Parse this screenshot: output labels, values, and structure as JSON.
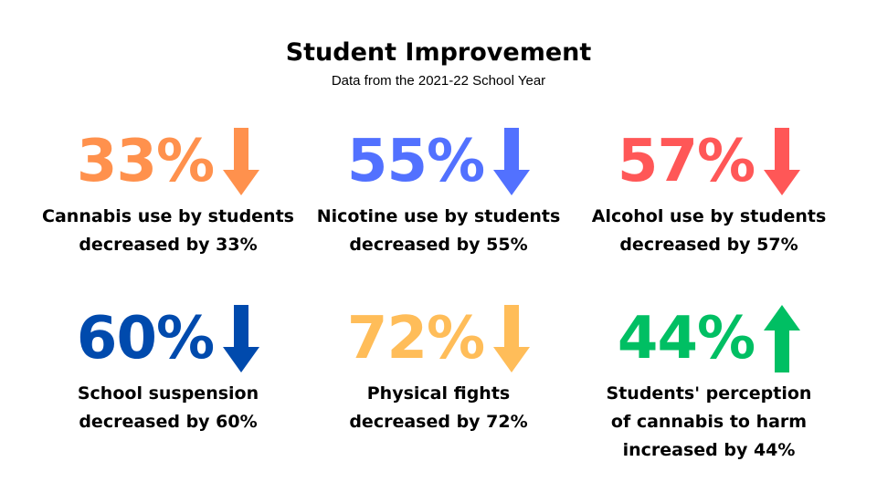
{
  "header": {
    "title": "Student Improvement",
    "subtitle": "Data from the 2021-22 School Year"
  },
  "stats": [
    {
      "percent": "33%",
      "caption": "Cannabis use by students decreased by 33%",
      "direction": "down",
      "icon": "arrow-down-icon",
      "color": "#FF914D"
    },
    {
      "percent": "55%",
      "caption": "Nicotine use by students decreased by 55%",
      "direction": "down",
      "icon": "arrow-down-icon",
      "color": "#5271FF"
    },
    {
      "percent": "57%",
      "caption": "Alcohol use by students decreased by 57%",
      "direction": "down",
      "icon": "arrow-down-icon",
      "color": "#FF5757"
    },
    {
      "percent": "60%",
      "caption": "School suspension decreased by 60%",
      "direction": "down",
      "icon": "arrow-down-icon",
      "color": "#004AAD"
    },
    {
      "percent": "72%",
      "caption": "Physical fights decreased by 72%",
      "direction": "down",
      "icon": "arrow-down-icon",
      "color": "#FFBD59"
    },
    {
      "percent": "44%",
      "caption": "Students' perception of cannabis to harm increased by 44%",
      "direction": "up",
      "icon": "arrow-up-icon",
      "color": "#00BF63"
    }
  ]
}
